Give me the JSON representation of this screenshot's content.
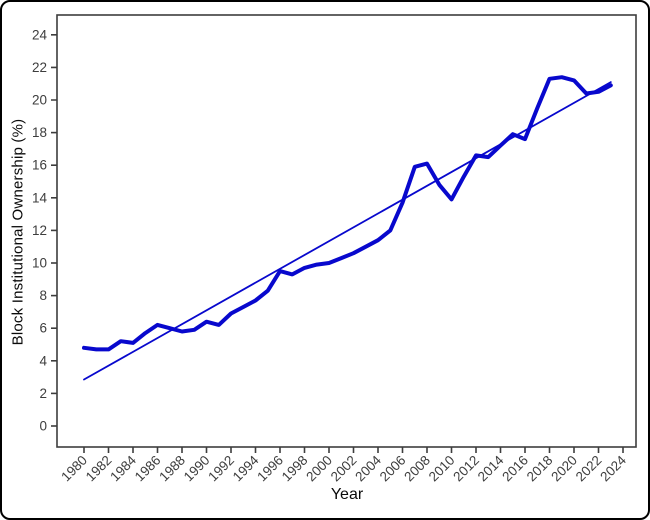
{
  "figure": {
    "outer_border_color": "#000000",
    "background_color": "#ffffff"
  },
  "chart_data": {
    "type": "line",
    "title": "",
    "xlabel": "Year",
    "ylabel": "Block Institutional Ownership (%)",
    "x_ticks": [
      1980,
      1982,
      1984,
      1986,
      1988,
      1990,
      1992,
      1994,
      1996,
      1998,
      2000,
      2002,
      2004,
      2006,
      2008,
      2010,
      2012,
      2014,
      2016,
      2018,
      2020,
      2022,
      2024
    ],
    "y_ticks": [
      0,
      2,
      4,
      6,
      8,
      10,
      12,
      14,
      16,
      18,
      20,
      22,
      24
    ],
    "xlim": [
      1977.8,
      2025.1
    ],
    "ylim": [
      -1.3,
      25.5
    ],
    "grid": false,
    "legend_position": "none",
    "colors": {
      "line": "#0808CD",
      "panel_border": "#3d3d3d",
      "tick_marks": "#3d3d3d",
      "tick_labels": "#3d3d3d",
      "axis_titles": "#0a0a0a"
    },
    "series": [
      {
        "name": "block-institutional-ownership",
        "label": "Block institutional ownership (%)",
        "style": "thick",
        "color": "#0808CD",
        "stroke_width": 4,
        "x": [
          1980,
          1981,
          1982,
          1983,
          1984,
          1985,
          1986,
          1987,
          1988,
          1989,
          1990,
          1991,
          1992,
          1993,
          1994,
          1995,
          1996,
          1997,
          1998,
          1999,
          2000,
          2001,
          2002,
          2003,
          2004,
          2005,
          2006,
          2007,
          2008,
          2009,
          2010,
          2011,
          2012,
          2013,
          2014,
          2015,
          2016,
          2017,
          2018,
          2019,
          2020,
          2021,
          2022,
          2023
        ],
        "values": [
          4.8,
          4.7,
          4.7,
          5.2,
          5.1,
          5.7,
          6.2,
          6.0,
          5.8,
          5.9,
          6.4,
          6.2,
          6.9,
          7.3,
          7.7,
          8.3,
          9.5,
          9.3,
          9.7,
          9.9,
          10.0,
          10.3,
          10.6,
          11.0,
          11.4,
          12.0,
          13.7,
          15.9,
          16.1,
          14.8,
          13.9,
          15.3,
          16.6,
          16.5,
          17.2,
          17.9,
          17.6,
          19.5,
          21.3,
          21.4,
          21.2,
          20.4,
          20.5,
          20.9
        ]
      },
      {
        "name": "linear-trend",
        "label": "Linear trend line",
        "style": "thin",
        "color": "#0808CD",
        "stroke_width": 1.8,
        "x": [
          1980,
          2023
        ],
        "values": [
          2.85,
          21.1
        ]
      }
    ]
  }
}
